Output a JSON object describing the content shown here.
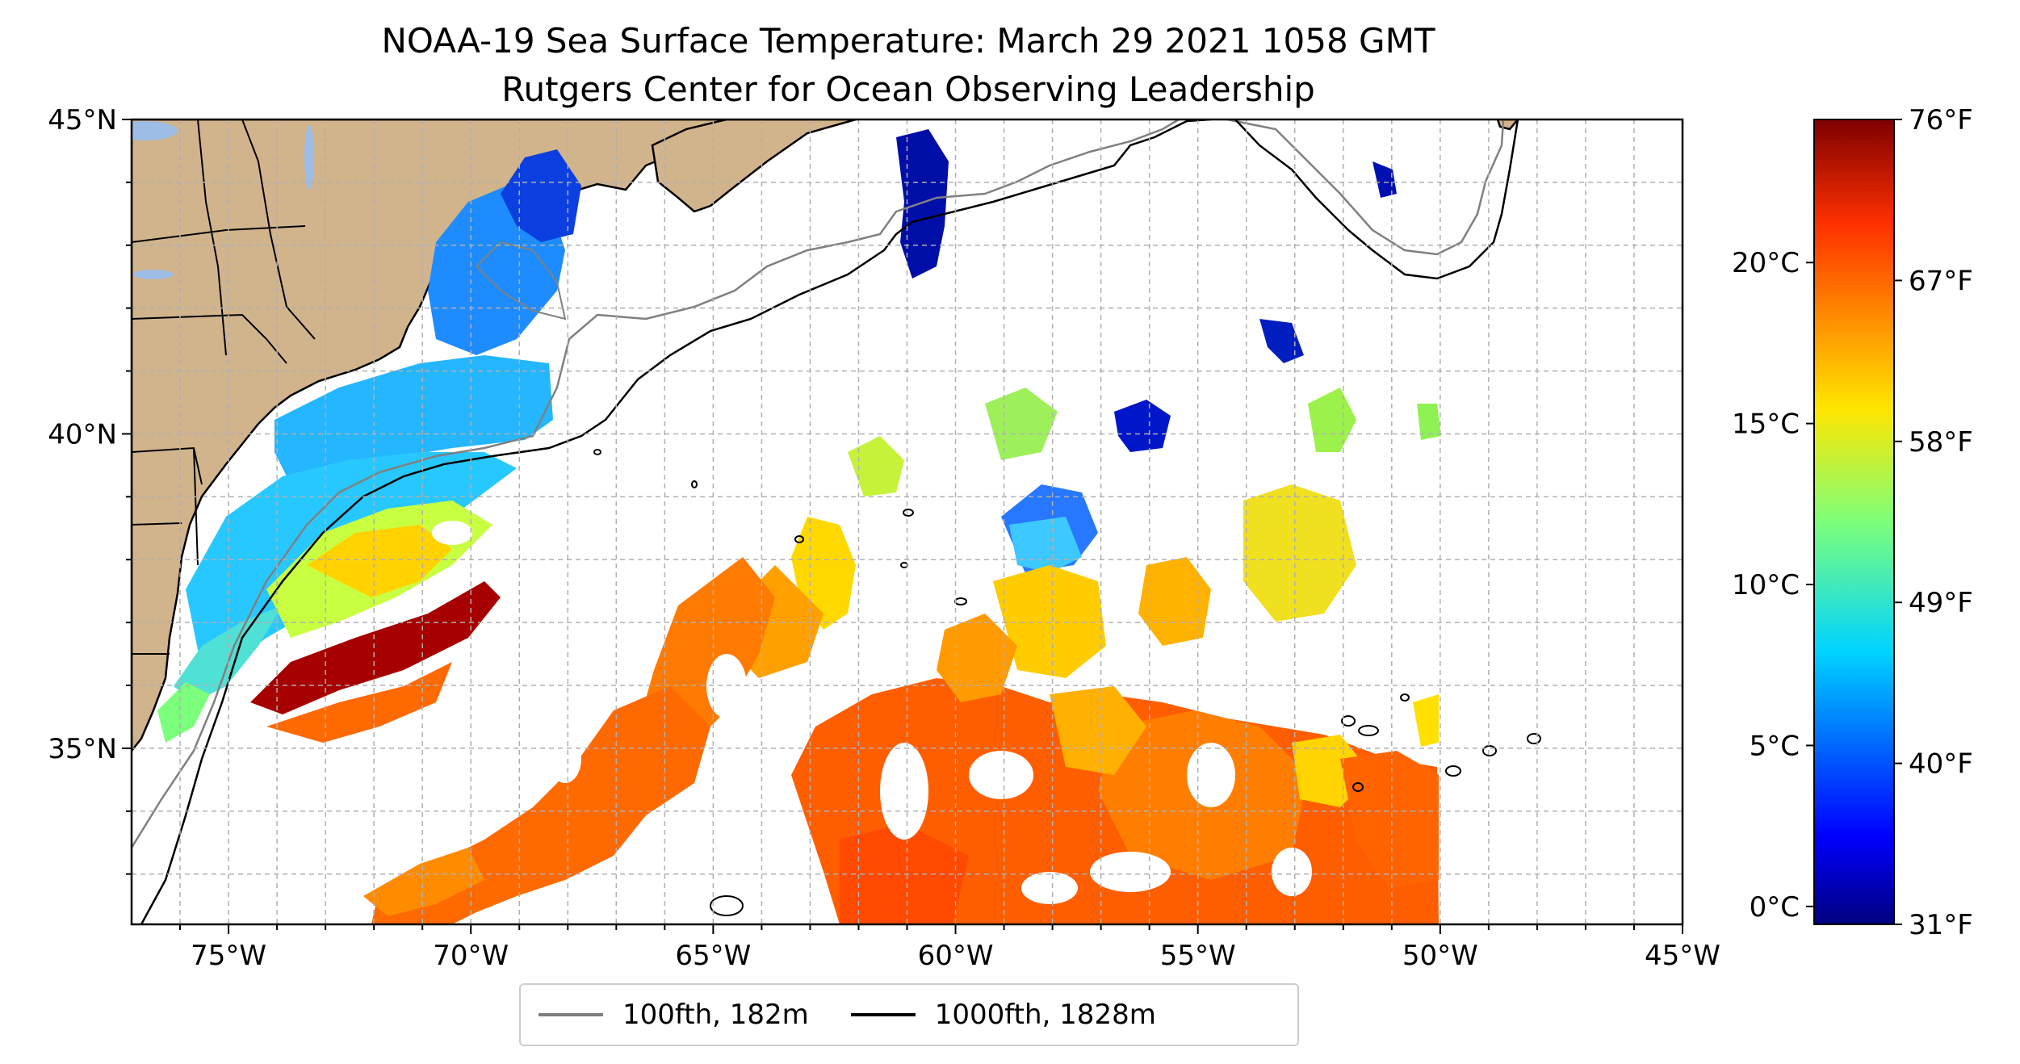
{
  "title": {
    "line1": "NOAA-19 Sea Surface Temperature: March 29 2021 1058 GMT",
    "line2": "Rutgers Center for Ocean Observing Leadership"
  },
  "map": {
    "lon_range": [
      -77,
      -45
    ],
    "lat_range": [
      32.2,
      45
    ],
    "lon_ticks": [
      "75°W",
      "70°W",
      "65°W",
      "60°W",
      "55°W",
      "50°W",
      "45°W"
    ],
    "lat_ticks": [
      "45°N",
      "40°N",
      "35°N"
    ],
    "gridlines": true,
    "land_color": "#d2b48c",
    "lake_color": "#9dbde6"
  },
  "colorbar": {
    "colormap": "jet",
    "celsius_ticks": [
      "20°C",
      "15°C",
      "10°C",
      "5°C",
      "0°C"
    ],
    "fahrenheit_ticks": [
      "76°F",
      "67°F",
      "58°F",
      "49°F",
      "40°F",
      "31°F"
    ]
  },
  "legend": {
    "items": [
      {
        "label": "100fth, 182m",
        "color": "#808080"
      },
      {
        "label": "1000fth, 1828m",
        "color": "#000000"
      }
    ]
  }
}
